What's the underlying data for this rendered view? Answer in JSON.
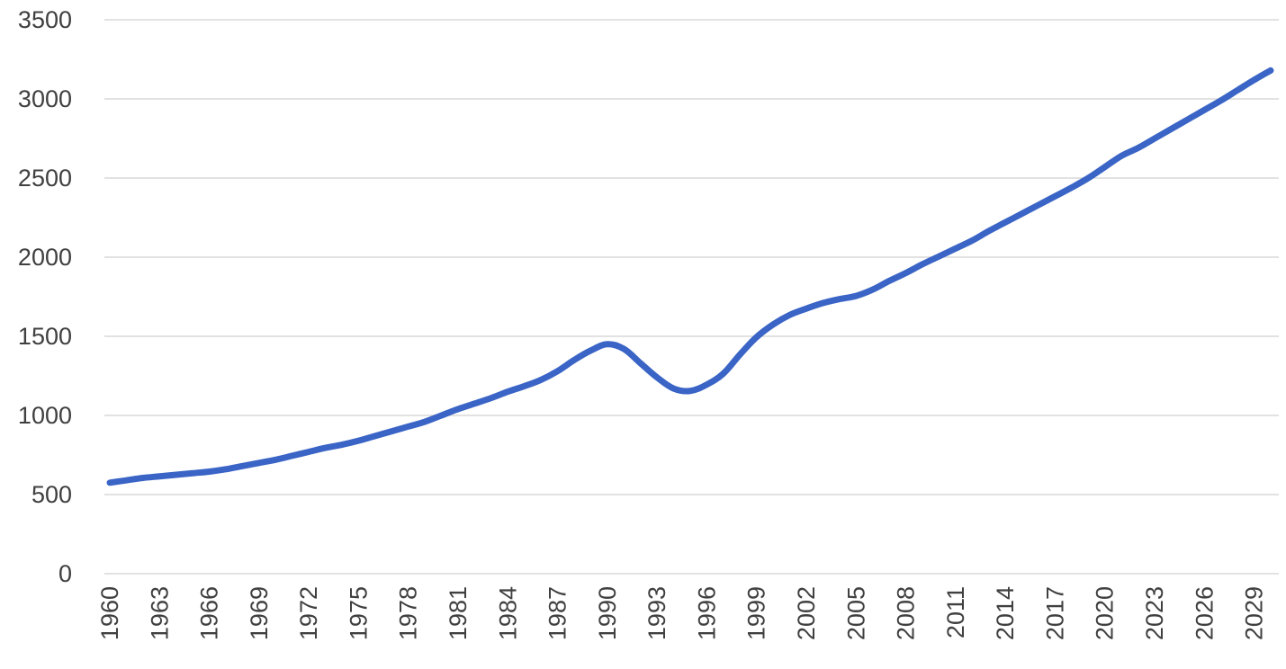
{
  "chart_data": {
    "type": "line",
    "title": "",
    "xlabel": "",
    "ylabel": "",
    "x": [
      1960,
      1961,
      1962,
      1963,
      1964,
      1965,
      1966,
      1967,
      1968,
      1969,
      1970,
      1971,
      1972,
      1973,
      1974,
      1975,
      1976,
      1977,
      1978,
      1979,
      1980,
      1981,
      1982,
      1983,
      1984,
      1985,
      1986,
      1987,
      1988,
      1989,
      1990,
      1991,
      1992,
      1993,
      1994,
      1995,
      1996,
      1997,
      1998,
      1999,
      2000,
      2001,
      2002,
      2003,
      2004,
      2005,
      2006,
      2007,
      2008,
      2009,
      2010,
      2011,
      2012,
      2013,
      2014,
      2015,
      2016,
      2017,
      2018,
      2019,
      2020,
      2021,
      2022,
      2023,
      2024,
      2025,
      2026,
      2027,
      2028,
      2029,
      2030
    ],
    "x_tick_labels": [
      "1960",
      "1963",
      "1966",
      "1969",
      "1972",
      "1975",
      "1978",
      "1981",
      "1984",
      "1987",
      "1990",
      "1993",
      "1996",
      "1999",
      "2002",
      "2005",
      "2008",
      "2011",
      "2014",
      "2017",
      "2020",
      "2023",
      "2026",
      "2029"
    ],
    "y_ticks": [
      0,
      500,
      1000,
      1500,
      2000,
      2500,
      3000,
      3500
    ],
    "ylim": [
      0,
      3500
    ],
    "grid": true,
    "legend": "none",
    "series": [
      {
        "color": "#3a64c5",
        "values": [
          575,
          590,
          605,
          615,
          625,
          635,
          645,
          660,
          680,
          700,
          720,
          745,
          770,
          795,
          815,
          840,
          870,
          900,
          930,
          960,
          1000,
          1040,
          1075,
          1110,
          1150,
          1185,
          1225,
          1280,
          1350,
          1410,
          1450,
          1420,
          1330,
          1240,
          1170,
          1155,
          1195,
          1265,
          1385,
          1495,
          1575,
          1635,
          1675,
          1710,
          1735,
          1755,
          1795,
          1850,
          1900,
          1955,
          2005,
          2055,
          2105,
          2165,
          2220,
          2275,
          2330,
          2385,
          2440,
          2500,
          2570,
          2640,
          2690,
          2750,
          2810,
          2870,
          2930,
          2990,
          3055,
          3120,
          3180
        ]
      }
    ]
  }
}
